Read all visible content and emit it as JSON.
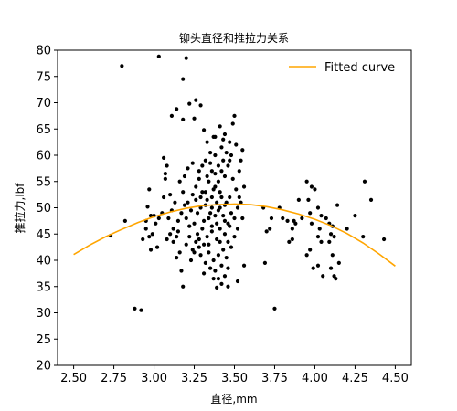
{
  "chart_data": {
    "type": "scatter",
    "title": "铆头直径和推拉力关系",
    "xlabel": "直径,mm",
    "ylabel": "推拉力,lbf",
    "xlim": [
      2.4,
      4.6
    ],
    "ylim": [
      20,
      80
    ],
    "xticks": [
      "2.50",
      "2.75",
      "3.00",
      "3.25",
      "3.50",
      "3.75",
      "4.00",
      "4.25",
      "4.50"
    ],
    "yticks": [
      "20",
      "25",
      "30",
      "35",
      "40",
      "45",
      "50",
      "55",
      "60",
      "65",
      "70",
      "75",
      "80"
    ],
    "grid": false,
    "legend_position": "top-right",
    "colors": {
      "points": "#000000",
      "curve": "#ffa500"
    },
    "series": [
      {
        "type": "scatter",
        "points": [
          [
            2.8,
            77.0
          ],
          [
            3.03,
            78.8
          ],
          [
            3.2,
            78.5
          ],
          [
            3.18,
            74.5
          ],
          [
            3.22,
            69.8
          ],
          [
            3.26,
            70.5
          ],
          [
            3.29,
            69.5
          ],
          [
            3.14,
            68.8
          ],
          [
            3.11,
            67.5
          ],
          [
            3.18,
            66.8
          ],
          [
            3.25,
            67.0
          ],
          [
            3.31,
            64.8
          ],
          [
            3.5,
            67.5
          ],
          [
            3.49,
            66.0
          ],
          [
            3.38,
            63.5
          ],
          [
            3.43,
            63.0
          ],
          [
            3.47,
            62.5
          ],
          [
            3.55,
            61.0
          ],
          [
            3.06,
            59.5
          ],
          [
            3.08,
            58.0
          ],
          [
            3.07,
            56.5
          ],
          [
            3.07,
            55.5
          ],
          [
            3.1,
            52.5
          ],
          [
            3.06,
            52.0
          ],
          [
            2.97,
            53.5
          ],
          [
            2.96,
            50.2
          ],
          [
            2.98,
            48.5
          ],
          [
            3.01,
            47.0
          ],
          [
            2.95,
            47.5
          ],
          [
            2.95,
            46.0
          ],
          [
            2.97,
            44.5
          ],
          [
            2.98,
            42.0
          ],
          [
            3.02,
            42.5
          ],
          [
            2.93,
            44.0
          ],
          [
            2.82,
            47.5
          ],
          [
            2.73,
            44.7
          ],
          [
            3.15,
            45.5
          ],
          [
            3.14,
            44.5
          ],
          [
            3.12,
            43.5
          ],
          [
            3.16,
            41.5
          ],
          [
            3.14,
            40.5
          ],
          [
            3.17,
            38.0
          ],
          [
            3.18,
            35.0
          ],
          [
            3.23,
            40.0
          ],
          [
            3.25,
            41.5
          ],
          [
            3.28,
            42.5
          ],
          [
            3.31,
            37.5
          ],
          [
            3.37,
            36.5
          ],
          [
            3.39,
            34.8
          ],
          [
            3.42,
            35.5
          ],
          [
            3.46,
            35.0
          ],
          [
            3.52,
            36.0
          ],
          [
            3.56,
            39.0
          ],
          [
            2.88,
            30.8
          ],
          [
            2.92,
            30.5
          ],
          [
            3.69,
            39.5
          ],
          [
            3.75,
            30.8
          ],
          [
            3.68,
            50.0
          ],
          [
            3.73,
            48.0
          ],
          [
            3.7,
            45.5
          ],
          [
            3.72,
            46.0
          ],
          [
            3.78,
            50.0
          ],
          [
            3.8,
            48.0
          ],
          [
            3.83,
            47.5
          ],
          [
            3.86,
            46.0
          ],
          [
            3.87,
            47.5
          ],
          [
            3.88,
            47.0
          ],
          [
            3.86,
            44.0
          ],
          [
            3.84,
            43.5
          ],
          [
            3.9,
            51.5
          ],
          [
            3.92,
            48.0
          ],
          [
            3.95,
            55.0
          ],
          [
            3.96,
            51.5
          ],
          [
            3.98,
            54.0
          ],
          [
            4.0,
            53.5
          ],
          [
            3.97,
            49.0
          ],
          [
            3.98,
            47.0
          ],
          [
            3.95,
            41.0
          ],
          [
            3.97,
            42.0
          ],
          [
            3.99,
            38.5
          ],
          [
            4.02,
            50.0
          ],
          [
            4.04,
            48.5
          ],
          [
            4.03,
            46.0
          ],
          [
            4.02,
            44.5
          ],
          [
            4.04,
            43.5
          ],
          [
            4.02,
            39.0
          ],
          [
            4.05,
            37.0
          ],
          [
            4.07,
            48.0
          ],
          [
            4.09,
            47.0
          ],
          [
            4.11,
            46.5
          ],
          [
            4.1,
            45.0
          ],
          [
            4.12,
            44.5
          ],
          [
            4.09,
            43.5
          ],
          [
            4.11,
            41.0
          ],
          [
            4.1,
            38.5
          ],
          [
            4.12,
            37.0
          ],
          [
            4.13,
            36.5
          ],
          [
            4.14,
            50.5
          ],
          [
            4.2,
            46.0
          ],
          [
            4.25,
            48.5
          ],
          [
            4.31,
            55.0
          ],
          [
            4.35,
            51.5
          ],
          [
            4.3,
            44.5
          ],
          [
            4.43,
            44.0
          ],
          [
            4.15,
            39.5
          ],
          [
            3.29,
            52.0
          ],
          [
            3.32,
            50.5
          ],
          [
            3.27,
            49.0
          ],
          [
            3.34,
            48.0
          ],
          [
            3.3,
            53.0
          ],
          [
            3.36,
            52.0
          ],
          [
            3.33,
            56.0
          ],
          [
            3.35,
            58.5
          ],
          [
            3.3,
            58.0
          ],
          [
            3.38,
            54.0
          ],
          [
            3.4,
            55.0
          ],
          [
            3.42,
            57.0
          ],
          [
            3.44,
            56.0
          ],
          [
            3.41,
            53.0
          ],
          [
            3.45,
            51.0
          ],
          [
            3.47,
            52.0
          ],
          [
            3.4,
            49.5
          ],
          [
            3.43,
            48.5
          ],
          [
            3.46,
            47.0
          ],
          [
            3.48,
            49.0
          ],
          [
            3.5,
            48.0
          ],
          [
            3.52,
            50.0
          ],
          [
            3.54,
            51.0
          ],
          [
            3.51,
            53.5
          ],
          [
            3.49,
            55.5
          ],
          [
            3.53,
            57.0
          ],
          [
            3.47,
            59.0
          ],
          [
            3.45,
            60.5
          ],
          [
            3.42,
            61.5
          ],
          [
            3.38,
            60.0
          ],
          [
            3.35,
            60.5
          ],
          [
            3.32,
            59.0
          ],
          [
            3.28,
            55.5
          ],
          [
            3.26,
            54.0
          ],
          [
            3.24,
            52.5
          ],
          [
            3.21,
            51.0
          ],
          [
            3.23,
            49.5
          ],
          [
            3.2,
            48.0
          ],
          [
            3.19,
            50.5
          ],
          [
            3.22,
            46.5
          ],
          [
            3.25,
            47.0
          ],
          [
            3.27,
            45.0
          ],
          [
            3.3,
            46.0
          ],
          [
            3.33,
            44.5
          ],
          [
            3.36,
            45.5
          ],
          [
            3.39,
            44.0
          ],
          [
            3.41,
            46.0
          ],
          [
            3.44,
            45.0
          ],
          [
            3.46,
            43.5
          ],
          [
            3.43,
            42.0
          ],
          [
            3.4,
            41.0
          ],
          [
            3.37,
            40.0
          ],
          [
            3.34,
            41.5
          ],
          [
            3.31,
            43.0
          ],
          [
            3.28,
            44.0
          ],
          [
            3.35,
            38.5
          ],
          [
            3.38,
            38.0
          ],
          [
            3.42,
            39.0
          ],
          [
            3.45,
            40.5
          ],
          [
            3.48,
            42.5
          ],
          [
            3.5,
            44.5
          ],
          [
            3.47,
            46.5
          ],
          [
            3.44,
            47.5
          ],
          [
            3.39,
            47.0
          ],
          [
            3.36,
            50.0
          ],
          [
            3.33,
            51.5
          ],
          [
            3.37,
            53.5
          ],
          [
            3.39,
            51.0
          ],
          [
            3.41,
            50.0
          ],
          [
            3.35,
            49.0
          ],
          [
            3.31,
            47.5
          ],
          [
            3.29,
            50.0
          ],
          [
            3.34,
            55.0
          ],
          [
            3.36,
            57.0
          ],
          [
            3.4,
            58.0
          ],
          [
            3.43,
            59.0
          ],
          [
            3.38,
            56.5
          ],
          [
            3.32,
            53.0
          ],
          [
            3.26,
            51.5
          ],
          [
            3.18,
            53.0
          ],
          [
            3.16,
            55.0
          ],
          [
            3.17,
            49.0
          ],
          [
            3.15,
            47.5
          ],
          [
            3.13,
            51.0
          ],
          [
            3.11,
            49.5
          ],
          [
            3.09,
            48.0
          ],
          [
            3.12,
            46.0
          ],
          [
            3.1,
            45.0
          ],
          [
            3.08,
            44.0
          ],
          [
            3.2,
            43.0
          ],
          [
            3.22,
            44.5
          ],
          [
            3.24,
            42.0
          ],
          [
            3.26,
            43.5
          ],
          [
            3.19,
            56.0
          ],
          [
            3.21,
            57.5
          ],
          [
            3.24,
            58.5
          ],
          [
            3.28,
            57.0
          ],
          [
            3.52,
            46.0
          ],
          [
            3.55,
            48.0
          ],
          [
            3.53,
            52.0
          ],
          [
            3.56,
            54.0
          ],
          [
            3.54,
            59.0
          ],
          [
            3.51,
            62.0
          ],
          [
            3.44,
            64.0
          ],
          [
            3.41,
            65.5
          ],
          [
            3.48,
            60.0
          ],
          [
            3.46,
            58.0
          ],
          [
            3.33,
            62.5
          ],
          [
            3.37,
            63.5
          ],
          [
            3.42,
            52.0
          ],
          [
            3.44,
            50.5
          ],
          [
            3.38,
            48.5
          ],
          [
            3.36,
            46.5
          ],
          [
            3.34,
            43.0
          ],
          [
            3.41,
            43.5
          ],
          [
            3.46,
            38.5
          ],
          [
            3.4,
            36.5
          ],
          [
            3.44,
            37.0
          ],
          [
            3.32,
            39.5
          ],
          [
            3.29,
            41.0
          ],
          [
            3.05,
            49.0
          ],
          [
            3.03,
            48.0
          ],
          [
            3.0,
            48.5
          ],
          [
            2.99,
            45.0
          ]
        ]
      },
      {
        "type": "line",
        "name": "Fitted curve",
        "x": [
          2.5,
          2.6,
          2.7,
          2.8,
          2.9,
          3.0,
          3.1,
          3.2,
          3.3,
          3.4,
          3.5,
          3.6,
          3.7,
          3.8,
          3.9,
          4.0,
          4.1,
          4.2,
          4.3,
          4.4,
          4.5
        ],
        "y": [
          41.1,
          42.9,
          44.5,
          45.9,
          47.2,
          48.3,
          49.2,
          49.9,
          50.4,
          50.6,
          50.7,
          50.6,
          50.2,
          49.6,
          48.8,
          47.8,
          46.6,
          45.1,
          43.3,
          41.2,
          38.9
        ]
      }
    ]
  }
}
